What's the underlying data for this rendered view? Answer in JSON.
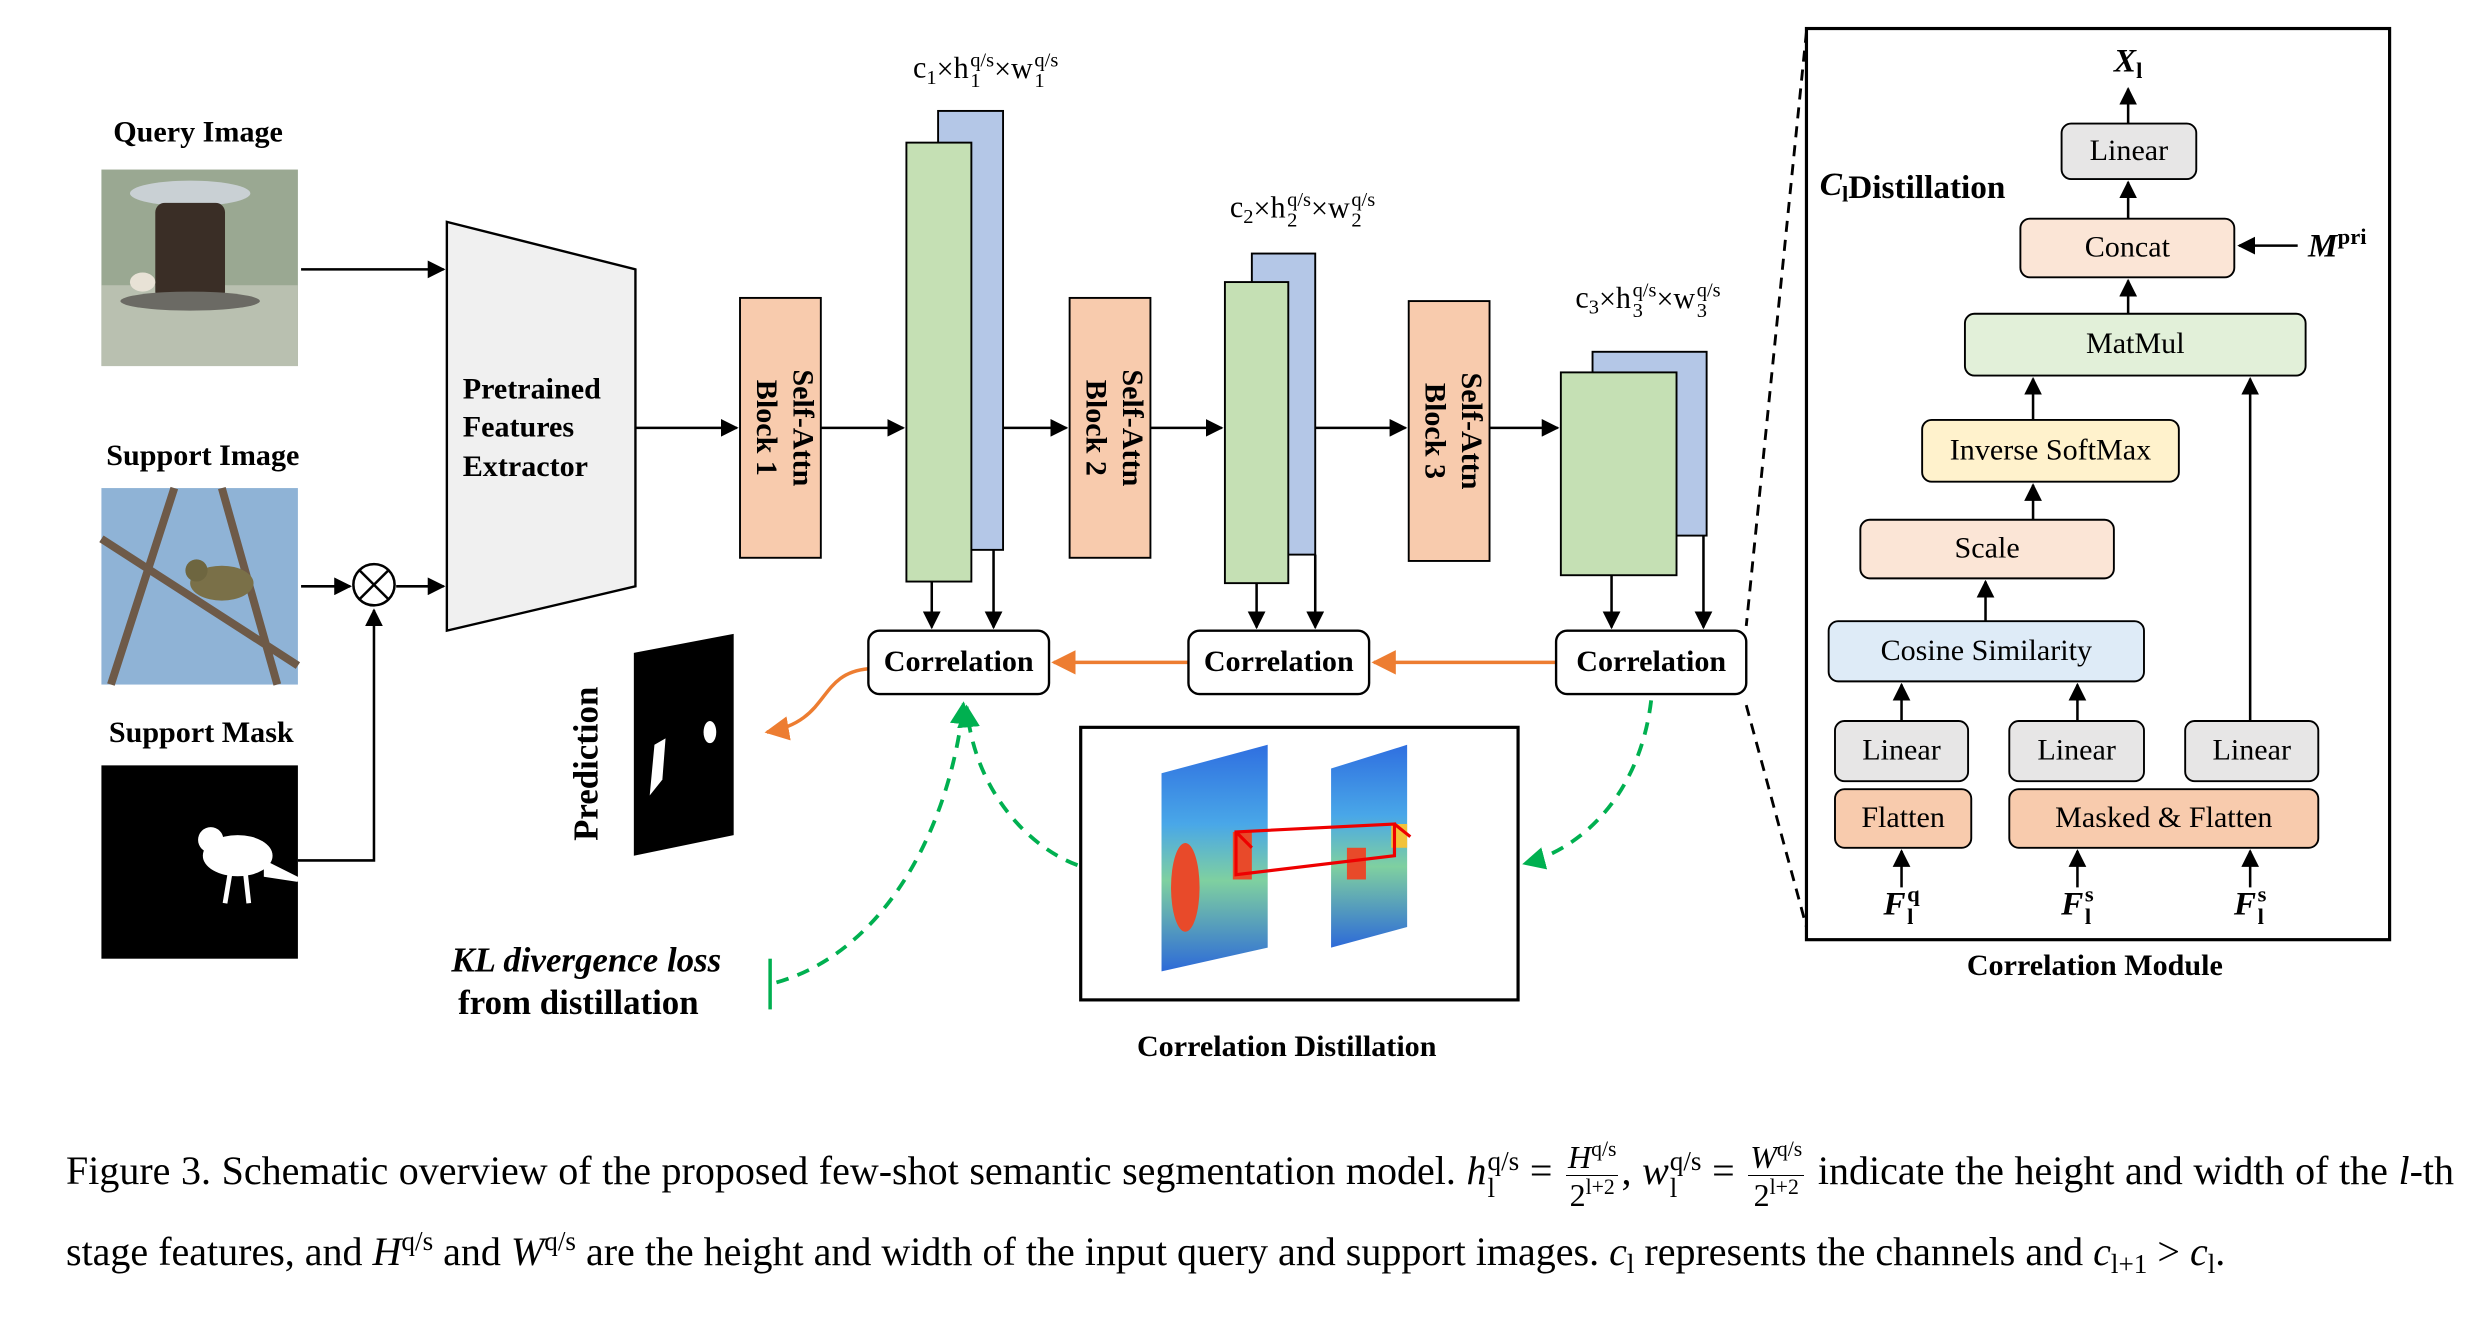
{
  "inputs": {
    "query": "Query Image",
    "support": "Support Image",
    "mask": "Support Mask"
  },
  "extractor": [
    "Pretrained",
    "Features",
    "Extractor"
  ],
  "blocks": [
    [
      "Self-Attn",
      "Block 1"
    ],
    [
      "Self-Attn",
      "Block 2"
    ],
    [
      "Self-Attn",
      "Block 3"
    ]
  ],
  "features": [
    [
      {
        "base": "c",
        "sub": "1"
      },
      "×",
      {
        "base": "h",
        "sub": "1",
        "sup": "q/s"
      },
      "×",
      {
        "base": "w",
        "sub": "1",
        "sup": "q/s"
      }
    ],
    [
      {
        "base": "c",
        "sub": "2"
      },
      "×",
      {
        "base": "h",
        "sub": "2",
        "sup": "q/s"
      },
      "×",
      {
        "base": "w",
        "sub": "2",
        "sup": "q/s"
      }
    ],
    [
      {
        "base": "c",
        "sub": "3"
      },
      "×",
      {
        "base": "h",
        "sub": "3",
        "sup": "q/s"
      },
      "×",
      {
        "base": "w",
        "sub": "3",
        "sup": "q/s"
      }
    ]
  ],
  "correlation": [
    "Correlation",
    "Correlation",
    "Correlation"
  ],
  "prediction": "Prediction",
  "kl_loss": [
    "KL divergence loss",
    "from distillation"
  ],
  "distillation_title": "Correlation Distillation",
  "cl_distillation": [
    {
      "base": "C",
      "sub": "l"
    },
    " Distillation"
  ],
  "module": {
    "title": "Correlation Module",
    "output": [
      {
        "base": "X",
        "sub": "l"
      }
    ],
    "prior": [
      {
        "base": "M",
        "sup": "pri"
      }
    ],
    "nodes": {
      "linear_out": "Linear",
      "concat": "Concat",
      "matmul": "MatMul",
      "inverse_softmax": "Inverse SoftMax",
      "scale": "Scale",
      "cosine": "Cosine Similarity",
      "linear_q": "Linear",
      "linear_s": "Linear",
      "linear_s2": "Linear",
      "flatten": "Flatten",
      "masked_flatten": "Masked & Flatten"
    },
    "inputs": [
      [
        {
          "base": "F",
          "sub": "l",
          "sup": "q"
        }
      ],
      [
        {
          "base": "F",
          "sub": "l",
          "sup": "s"
        }
      ],
      [
        {
          "base": "F",
          "sub": "l",
          "sup": "s"
        }
      ]
    ]
  },
  "caption": [
    "Figure 3.  Schematic overview of the proposed few-shot semantic segmentation model. ",
    {
      "base": "h",
      "sub": "l",
      "sup": "q/s"
    },
    " = ",
    {
      "num_base": "H",
      "num_sup": "q/s",
      "den_base": "2",
      "den_sup": "l+2"
    },
    ", ",
    {
      "base": "w",
      "sub": "l",
      "sup": "q/s"
    },
    " = ",
    {
      "num_base": "W",
      "num_sup": "q/s",
      "den_base": "2",
      "den_sup": "l+2"
    },
    " indicate the height and width of the ",
    {
      "italic": "l"
    },
    "-th stage features, and ",
    {
      "base": "H",
      "sup": "q/s"
    },
    " and ",
    {
      "base": "W",
      "sup": "q/s"
    },
    " are the height and width of the input query and support images. ",
    {
      "base": "c",
      "sub": "l"
    },
    " represents the channels and ",
    {
      "base": "c",
      "sub": "l+1"
    },
    " > ",
    {
      "base": "c",
      "sub": "l"
    },
    "."
  ]
}
